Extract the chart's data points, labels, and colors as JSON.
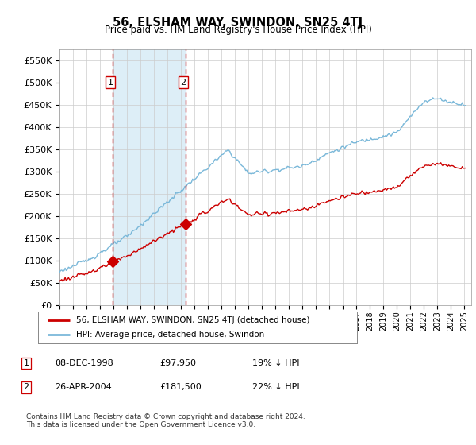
{
  "title": "56, ELSHAM WAY, SWINDON, SN25 4TJ",
  "subtitle": "Price paid vs. HM Land Registry's House Price Index (HPI)",
  "ylim": [
    0,
    575000
  ],
  "yticks": [
    0,
    50000,
    100000,
    150000,
    200000,
    250000,
    300000,
    350000,
    400000,
    450000,
    500000,
    550000
  ],
  "sale1_date": 1998.92,
  "sale1_price": 97950,
  "sale2_date": 2004.32,
  "sale2_price": 181500,
  "hpi_color": "#7ab8d9",
  "price_color": "#cc0000",
  "dashed_color": "#cc0000",
  "background_color": "#ffffff",
  "grid_color": "#cccccc",
  "legend_label_price": "56, ELSHAM WAY, SWINDON, SN25 4TJ (detached house)",
  "legend_label_hpi": "HPI: Average price, detached house, Swindon",
  "table_row1": [
    "1",
    "08-DEC-1998",
    "£97,950",
    "19% ↓ HPI"
  ],
  "table_row2": [
    "2",
    "26-APR-2004",
    "£181,500",
    "22% ↓ HPI"
  ],
  "footer": "Contains HM Land Registry data © Crown copyright and database right 2024.\nThis data is licensed under the Open Government Licence v3.0.",
  "highlight_fill": "#ddeef7",
  "xlim_start": 1995,
  "xlim_end": 2025.5
}
